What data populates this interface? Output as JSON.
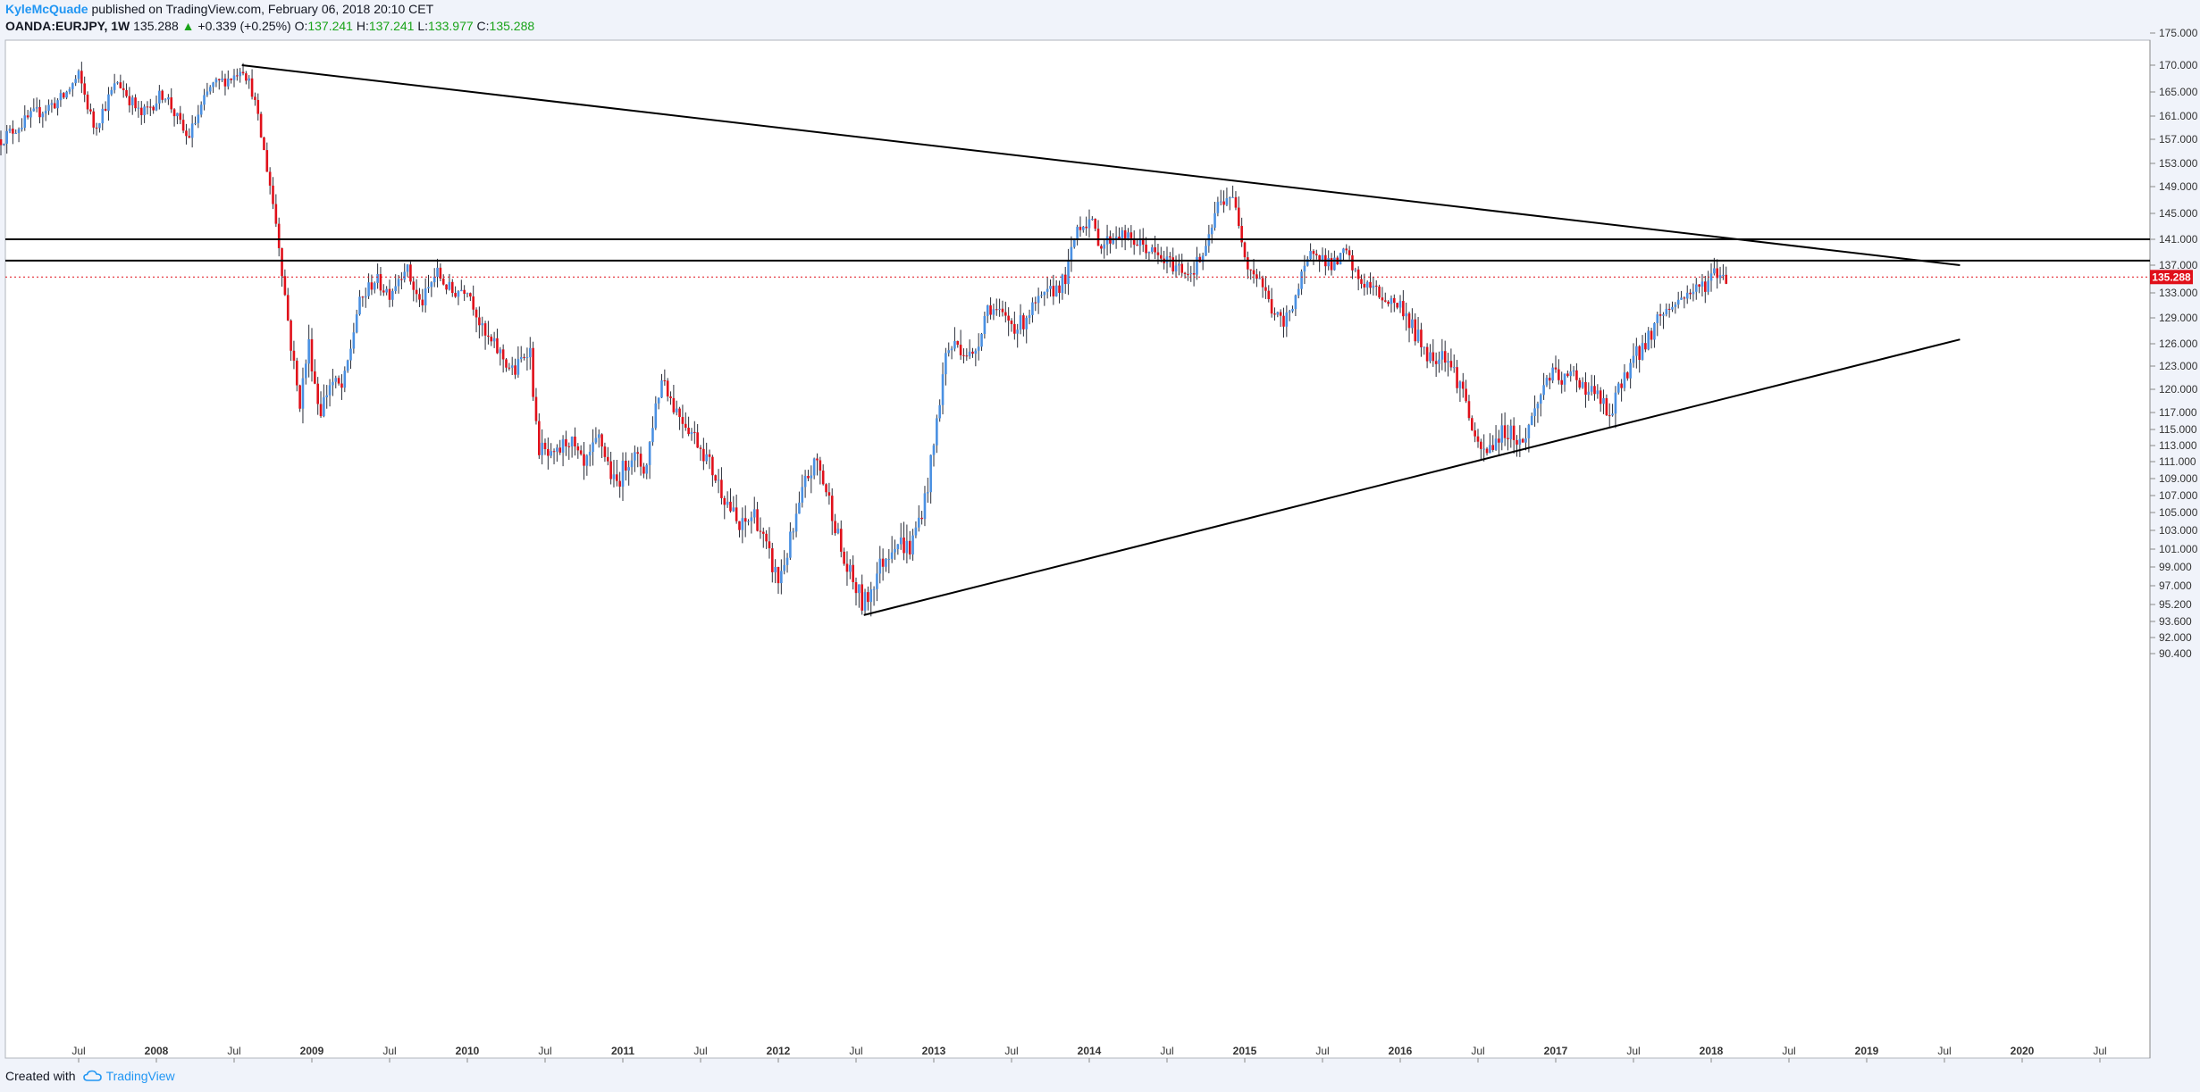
{
  "header": {
    "author": "KyleMcQuade",
    "published": "published on TradingView.com, February 06, 2018 20:10 CET",
    "symbol": "OANDA:EURJPY, 1W",
    "last": "135.288",
    "change": "+0.339 (+0.25%)",
    "o_label": "O:",
    "o_value": "137.241",
    "h_label": "H:",
    "h_value": "137.241",
    "l_label": "L:",
    "l_value": "133.977",
    "c_label": "C:",
    "c_value": "135.288"
  },
  "footer": {
    "created_with": "Created with",
    "brand": "TradingView"
  },
  "colors": {
    "up": "#4a90e2",
    "down": "#e0101a",
    "line": "#000000",
    "price_tag": "#e0101a"
  },
  "chart_data": {
    "type": "candlestick",
    "title": "",
    "current_price": 135.288,
    "y_ticks": [
      175.0,
      170.0,
      165.0,
      161.0,
      157.0,
      153.0,
      149.0,
      145.0,
      141.0,
      137.0,
      133.0,
      129.0,
      126.0,
      123.0,
      120.0,
      117.0,
      115.0,
      113.0,
      111.0,
      109.0,
      107.0,
      105.0,
      103.0,
      101.0,
      99.0,
      97.0,
      95.2,
      93.6,
      92.0,
      90.4
    ],
    "y_tick_labels": [
      "175.000",
      "170.000",
      "165.000",
      "161.000",
      "157.000",
      "153.000",
      "149.000",
      "145.000",
      "141.000",
      "137.000",
      "133.000",
      "129.000",
      "126.000",
      "123.000",
      "120.000",
      "117.000",
      "115.000",
      "113.000",
      "111.000",
      "109.000",
      "107.000",
      "105.000",
      "103.000",
      "101.000",
      "99.000",
      "97.000",
      "95.200",
      "93.600",
      "92.000",
      "90.400"
    ],
    "x_ticks": [
      {
        "label": "Jul",
        "date": 2007.5,
        "bold": false
      },
      {
        "label": "2008",
        "date": 2008.0,
        "bold": true
      },
      {
        "label": "Jul",
        "date": 2008.5,
        "bold": false
      },
      {
        "label": "2009",
        "date": 2009.0,
        "bold": true
      },
      {
        "label": "Jul",
        "date": 2009.5,
        "bold": false
      },
      {
        "label": "2010",
        "date": 2010.0,
        "bold": true
      },
      {
        "label": "Jul",
        "date": 2010.5,
        "bold": false
      },
      {
        "label": "2011",
        "date": 2011.0,
        "bold": true
      },
      {
        "label": "Jul",
        "date": 2011.5,
        "bold": false
      },
      {
        "label": "2012",
        "date": 2012.0,
        "bold": true
      },
      {
        "label": "Jul",
        "date": 2012.5,
        "bold": false
      },
      {
        "label": "2013",
        "date": 2013.0,
        "bold": true
      },
      {
        "label": "Jul",
        "date": 2013.5,
        "bold": false
      },
      {
        "label": "2014",
        "date": 2014.0,
        "bold": true
      },
      {
        "label": "Jul",
        "date": 2014.5,
        "bold": false
      },
      {
        "label": "2015",
        "date": 2015.0,
        "bold": true
      },
      {
        "label": "Jul",
        "date": 2015.5,
        "bold": false
      },
      {
        "label": "2016",
        "date": 2016.0,
        "bold": true
      },
      {
        "label": "Jul",
        "date": 2016.5,
        "bold": false
      },
      {
        "label": "2017",
        "date": 2017.0,
        "bold": true
      },
      {
        "label": "Jul",
        "date": 2017.5,
        "bold": false
      },
      {
        "label": "2018",
        "date": 2018.0,
        "bold": true
      },
      {
        "label": "Jul",
        "date": 2018.5,
        "bold": false
      },
      {
        "label": "2019",
        "date": 2019.0,
        "bold": true
      },
      {
        "label": "Jul",
        "date": 2019.5,
        "bold": false
      },
      {
        "label": "2020",
        "date": 2020.0,
        "bold": true
      },
      {
        "label": "Jul",
        "date": 2020.5,
        "bold": false
      }
    ],
    "price_path": [
      [
        2007.0,
        157.0
      ],
      [
        2007.2,
        161.0
      ],
      [
        2007.4,
        164.0
      ],
      [
        2007.5,
        168.0
      ],
      [
        2007.6,
        159.0
      ],
      [
        2007.75,
        167.0
      ],
      [
        2007.9,
        161.0
      ],
      [
        2008.05,
        165.0
      ],
      [
        2008.2,
        157.0
      ],
      [
        2008.35,
        166.0
      ],
      [
        2008.5,
        168.0
      ],
      [
        2008.55,
        170.0
      ],
      [
        2008.62,
        165.0
      ],
      [
        2008.72,
        151.0
      ],
      [
        2008.78,
        142.0
      ],
      [
        2008.85,
        128.0
      ],
      [
        2008.92,
        118.0
      ],
      [
        2008.98,
        126.0
      ],
      [
        2009.05,
        117.0
      ],
      [
        2009.12,
        121.0
      ],
      [
        2009.2,
        120.0
      ],
      [
        2009.3,
        131.0
      ],
      [
        2009.4,
        135.0
      ],
      [
        2009.5,
        133.0
      ],
      [
        2009.6,
        137.0
      ],
      [
        2009.7,
        131.0
      ],
      [
        2009.8,
        136.0
      ],
      [
        2009.9,
        133.0
      ],
      [
        2010.0,
        134.0
      ],
      [
        2010.1,
        127.0
      ],
      [
        2010.2,
        125.0
      ],
      [
        2010.3,
        122.0
      ],
      [
        2010.4,
        126.0
      ],
      [
        2010.45,
        113.0
      ],
      [
        2010.55,
        111.0
      ],
      [
        2010.65,
        114.0
      ],
      [
        2010.75,
        110.0
      ],
      [
        2010.85,
        114.0
      ],
      [
        2010.95,
        108.0
      ],
      [
        2011.05,
        112.0
      ],
      [
        2011.15,
        110.0
      ],
      [
        2011.2,
        117.0
      ],
      [
        2011.26,
        122.0
      ],
      [
        2011.32,
        118.0
      ],
      [
        2011.4,
        116.0
      ],
      [
        2011.5,
        113.0
      ],
      [
        2011.6,
        109.0
      ],
      [
        2011.68,
        106.0
      ],
      [
        2011.75,
        103.0
      ],
      [
        2011.85,
        105.0
      ],
      [
        2011.92,
        101.0
      ],
      [
        2012.0,
        97.5
      ],
      [
        2012.1,
        103.0
      ],
      [
        2012.18,
        109.0
      ],
      [
        2012.25,
        111.0
      ],
      [
        2012.35,
        105.0
      ],
      [
        2012.42,
        99.5
      ],
      [
        2012.55,
        95.0
      ],
      [
        2012.65,
        99.0
      ],
      [
        2012.75,
        102.0
      ],
      [
        2012.85,
        101.0
      ],
      [
        2012.95,
        107.0
      ],
      [
        2013.0,
        113.0
      ],
      [
        2013.08,
        125.0
      ],
      [
        2013.15,
        126.0
      ],
      [
        2013.25,
        124.0
      ],
      [
        2013.35,
        131.0
      ],
      [
        2013.45,
        129.0
      ],
      [
        2013.55,
        128.0
      ],
      [
        2013.65,
        131.0
      ],
      [
        2013.75,
        133.0
      ],
      [
        2013.85,
        135.0
      ],
      [
        2013.92,
        143.0
      ],
      [
        2014.0,
        144.0
      ],
      [
        2014.08,
        140.0
      ],
      [
        2014.18,
        142.0
      ],
      [
        2014.25,
        141.0
      ],
      [
        2014.35,
        140.0
      ],
      [
        2014.45,
        138.0
      ],
      [
        2014.55,
        137.0
      ],
      [
        2014.65,
        136.0
      ],
      [
        2014.75,
        139.0
      ],
      [
        2014.82,
        146.0
      ],
      [
        2014.9,
        148.0
      ],
      [
        2014.95,
        145.0
      ],
      [
        2015.02,
        137.0
      ],
      [
        2015.1,
        135.0
      ],
      [
        2015.18,
        130.0
      ],
      [
        2015.25,
        128.0
      ],
      [
        2015.35,
        134.0
      ],
      [
        2015.45,
        140.0
      ],
      [
        2015.5,
        138.0
      ],
      [
        2015.58,
        137.0
      ],
      [
        2015.65,
        139.0
      ],
      [
        2015.72,
        135.0
      ],
      [
        2015.8,
        134.0
      ],
      [
        2015.9,
        132.0
      ],
      [
        2016.0,
        131.0
      ],
      [
        2016.1,
        127.0
      ],
      [
        2016.2,
        124.0
      ],
      [
        2016.28,
        125.0
      ],
      [
        2016.35,
        122.0
      ],
      [
        2016.42,
        119.0
      ],
      [
        2016.48,
        113.0
      ],
      [
        2016.55,
        112.0
      ],
      [
        2016.62,
        114.0
      ],
      [
        2016.7,
        115.0
      ],
      [
        2016.78,
        113.0
      ],
      [
        2016.88,
        118.0
      ],
      [
        2016.95,
        122.0
      ],
      [
        2017.05,
        121.0
      ],
      [
        2017.12,
        122.0
      ],
      [
        2017.2,
        120.0
      ],
      [
        2017.28,
        119.0
      ],
      [
        2017.35,
        116.0
      ],
      [
        2017.42,
        121.0
      ],
      [
        2017.5,
        124.0
      ],
      [
        2017.58,
        126.0
      ],
      [
        2017.65,
        129.0
      ],
      [
        2017.75,
        131.0
      ],
      [
        2017.85,
        133.0
      ],
      [
        2017.95,
        134.0
      ],
      [
        2018.02,
        136.0
      ],
      [
        2018.1,
        135.3
      ]
    ],
    "lines": [
      {
        "name": "upper-trendline",
        "x1": 2008.55,
        "y1": 170.0,
        "x2": 2019.6,
        "y2": 137.0
      },
      {
        "name": "lower-trendline",
        "x1": 2012.55,
        "y1": 94.2,
        "x2": 2019.6,
        "y2": 126.5
      },
      {
        "name": "horizontal-resistance-upper",
        "y": 141.0
      },
      {
        "name": "horizontal-resistance-lower",
        "y": 137.7
      }
    ]
  }
}
